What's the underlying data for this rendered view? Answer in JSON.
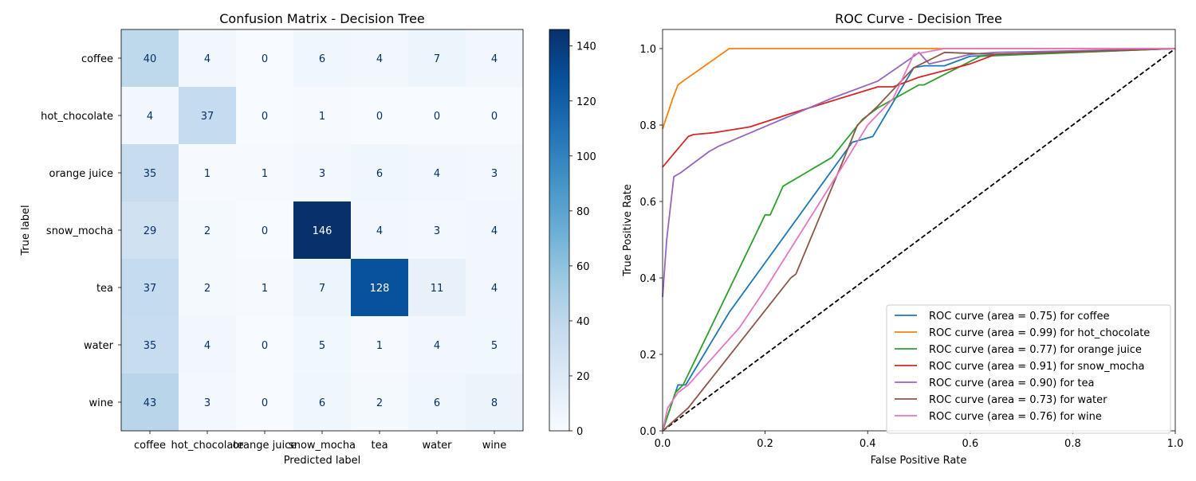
{
  "chart_data": [
    {
      "type": "heatmap",
      "title": "Confusion Matrix - Decision Tree",
      "xlabel": "Predicted label",
      "ylabel": "True label",
      "x_categories": [
        "coffee",
        "hot_chocolate",
        "orange juice",
        "snow_mocha",
        "tea",
        "water",
        "wine"
      ],
      "y_categories": [
        "coffee",
        "hot_chocolate",
        "orange juice",
        "snow_mocha",
        "tea",
        "water",
        "wine"
      ],
      "values": [
        [
          40,
          4,
          0,
          6,
          4,
          7,
          4
        ],
        [
          4,
          37,
          0,
          1,
          0,
          0,
          0
        ],
        [
          35,
          1,
          1,
          3,
          6,
          4,
          3
        ],
        [
          29,
          2,
          0,
          146,
          4,
          3,
          4
        ],
        [
          37,
          2,
          1,
          7,
          128,
          11,
          4
        ],
        [
          35,
          4,
          0,
          5,
          1,
          4,
          5
        ],
        [
          43,
          3,
          0,
          6,
          2,
          6,
          8
        ]
      ],
      "colormap": "Blues",
      "colorbar_range": [
        0,
        146
      ],
      "colorbar_ticks": [
        "0",
        "20",
        "40",
        "60",
        "80",
        "100",
        "120",
        "140"
      ]
    },
    {
      "type": "line",
      "title": "ROC Curve - Decision Tree",
      "xlabel": "False Positive Rate",
      "ylabel": "True Positive Rate",
      "xlim": [
        0,
        1
      ],
      "ylim": [
        0,
        1.05
      ],
      "x_ticks": [
        "0.0",
        "0.2",
        "0.4",
        "0.6",
        "0.8",
        "1.0"
      ],
      "y_ticks": [
        "0.0",
        "0.2",
        "0.4",
        "0.6",
        "0.8",
        "1.0"
      ],
      "legend_position": "lower-right",
      "series": [
        {
          "name": "ROC curve (area = 0.75) for coffee",
          "color": "#1f77b4",
          "points": [
            [
              0,
              0
            ],
            [
              0.02,
              0.08
            ],
            [
              0.03,
              0.12
            ],
            [
              0.045,
              0.12
            ],
            [
              0.13,
              0.31
            ],
            [
              0.37,
              0.755
            ],
            [
              0.41,
              0.77
            ],
            [
              0.49,
              0.95
            ],
            [
              0.51,
              0.955
            ],
            [
              0.55,
              0.955
            ],
            [
              0.6,
              0.98
            ],
            [
              1,
              1
            ]
          ]
        },
        {
          "name": "ROC curve (area = 0.99) for hot_chocolate",
          "color": "#ff7f0e",
          "points": [
            [
              0,
              0.79
            ],
            [
              0.02,
              0.87
            ],
            [
              0.03,
              0.905
            ],
            [
              0.04,
              0.915
            ],
            [
              0.13,
              1.0
            ],
            [
              1,
              1
            ]
          ]
        },
        {
          "name": "ROC curve (area = 0.77) for orange juice",
          "color": "#2ca02c",
          "points": [
            [
              0,
              0
            ],
            [
              0.025,
              0.1
            ],
            [
              0.04,
              0.12
            ],
            [
              0.2,
              0.565
            ],
            [
              0.21,
              0.565
            ],
            [
              0.235,
              0.64
            ],
            [
              0.33,
              0.715
            ],
            [
              0.39,
              0.815
            ],
            [
              0.42,
              0.845
            ],
            [
              0.5,
              0.905
            ],
            [
              0.51,
              0.905
            ],
            [
              0.62,
              0.98
            ],
            [
              1,
              1
            ]
          ]
        },
        {
          "name": "ROC curve (area = 0.91) for snow_mocha",
          "color": "#d62728",
          "points": [
            [
              0,
              0.69
            ],
            [
              0.05,
              0.77
            ],
            [
              0.06,
              0.775
            ],
            [
              0.1,
              0.78
            ],
            [
              0.17,
              0.795
            ],
            [
              0.25,
              0.83
            ],
            [
              0.42,
              0.9
            ],
            [
              0.45,
              0.9
            ],
            [
              0.5,
              0.925
            ],
            [
              0.6,
              0.96
            ],
            [
              0.65,
              0.985
            ],
            [
              1,
              1
            ]
          ]
        },
        {
          "name": "ROC curve (area = 0.90) for tea",
          "color": "#9467bd",
          "points": [
            [
              0,
              0.35
            ],
            [
              0.008,
              0.5
            ],
            [
              0.022,
              0.665
            ],
            [
              0.035,
              0.675
            ],
            [
              0.09,
              0.73
            ],
            [
              0.11,
              0.745
            ],
            [
              0.33,
              0.87
            ],
            [
              0.42,
              0.915
            ],
            [
              0.49,
              0.98
            ],
            [
              0.5,
              0.99
            ],
            [
              0.52,
              0.96
            ],
            [
              0.57,
              0.975
            ],
            [
              0.6,
              0.985
            ],
            [
              0.65,
              0.99
            ],
            [
              1,
              1
            ]
          ]
        },
        {
          "name": "ROC curve (area = 0.73) for water",
          "color": "#8c564b",
          "points": [
            [
              0,
              0
            ],
            [
              0.05,
              0.06
            ],
            [
              0.25,
              0.4
            ],
            [
              0.26,
              0.41
            ],
            [
              0.35,
              0.7
            ],
            [
              0.38,
              0.8
            ],
            [
              0.42,
              0.85
            ],
            [
              0.49,
              0.95
            ],
            [
              0.55,
              0.99
            ],
            [
              0.65,
              0.985
            ],
            [
              1,
              1
            ]
          ]
        },
        {
          "name": "ROC curve (area = 0.76) for wine",
          "color": "#e377c2",
          "points": [
            [
              0,
              0
            ],
            [
              0.01,
              0.06
            ],
            [
              0.03,
              0.1
            ],
            [
              0.05,
              0.12
            ],
            [
              0.15,
              0.27
            ],
            [
              0.2,
              0.37
            ],
            [
              0.35,
              0.69
            ],
            [
              0.4,
              0.8
            ],
            [
              0.45,
              0.87
            ],
            [
              0.49,
              0.985
            ],
            [
              0.55,
              1.0
            ],
            [
              1,
              1
            ]
          ]
        }
      ],
      "reference_line": {
        "points": [
          [
            0,
            0
          ],
          [
            1,
            1
          ]
        ],
        "color": "#000000",
        "style": "dashed"
      }
    }
  ]
}
